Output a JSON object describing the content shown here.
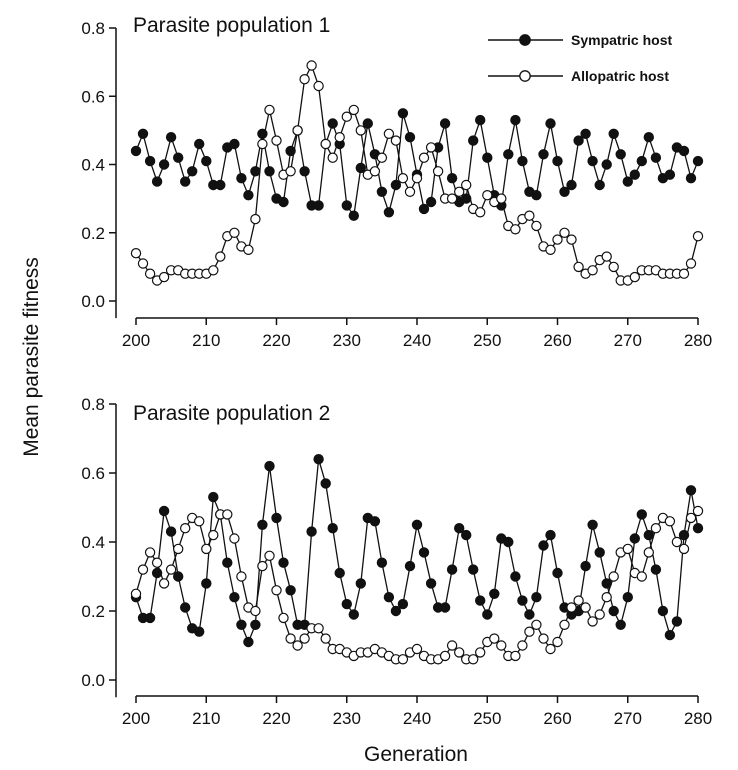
{
  "chart_data": {
    "type": "line",
    "ylabel": "Mean parasite fitness",
    "xlabel": "Generation",
    "legend": {
      "placement": "top-right of first panel",
      "entries": [
        {
          "label": "Sympatric host",
          "marker": "filled-circle",
          "color": "#111111"
        },
        {
          "label": "Allopatric host",
          "marker": "open-circle",
          "color": "#111111"
        }
      ]
    },
    "grid": false,
    "panels": [
      {
        "title": "Parasite population 1",
        "xlim": [
          200,
          280
        ],
        "ylim": [
          -0.05,
          0.8
        ],
        "x_ticks": [
          "200",
          "210",
          "220",
          "230",
          "240",
          "250",
          "260",
          "270",
          "280"
        ],
        "y_ticks": [
          "0.0",
          "0.2",
          "0.4",
          "0.6",
          "0.8"
        ],
        "x_start": 200,
        "series": [
          {
            "name": "Sympatric host",
            "marker": "filled",
            "values": [
              0.44,
              0.49,
              0.41,
              0.35,
              0.4,
              0.48,
              0.42,
              0.35,
              0.38,
              0.46,
              0.41,
              0.34,
              0.34,
              0.45,
              0.46,
              0.36,
              0.31,
              0.38,
              0.49,
              0.38,
              0.3,
              0.29,
              0.44,
              0.5,
              0.38,
              0.28,
              0.28,
              0.46,
              0.52,
              0.46,
              0.28,
              0.25,
              0.39,
              0.52,
              0.43,
              0.32,
              0.26,
              0.34,
              0.55,
              0.48,
              0.37,
              0.27,
              0.29,
              0.45,
              0.52,
              0.36,
              0.29,
              0.3,
              0.47,
              0.53,
              0.42,
              0.31,
              0.28,
              0.43,
              0.53,
              0.41,
              0.32,
              0.31,
              0.43,
              0.52,
              0.41,
              0.32,
              0.34,
              0.47,
              0.49,
              0.41,
              0.34,
              0.4,
              0.49,
              0.43,
              0.35,
              0.37,
              0.41,
              0.48,
              0.42,
              0.36,
              0.37,
              0.45,
              0.44,
              0.36,
              0.41
            ]
          },
          {
            "name": "Allopatric host",
            "marker": "open",
            "values": [
              0.14,
              0.11,
              0.08,
              0.06,
              0.07,
              0.09,
              0.09,
              0.08,
              0.08,
              0.08,
              0.08,
              0.09,
              0.13,
              0.19,
              0.2,
              0.16,
              0.15,
              0.24,
              0.46,
              0.56,
              0.47,
              0.37,
              0.38,
              0.5,
              0.65,
              0.69,
              0.63,
              0.46,
              0.42,
              0.48,
              0.54,
              0.56,
              0.5,
              0.37,
              0.38,
              0.42,
              0.49,
              0.47,
              0.36,
              0.32,
              0.36,
              0.42,
              0.45,
              0.38,
              0.3,
              0.3,
              0.32,
              0.34,
              0.27,
              0.26,
              0.31,
              0.29,
              0.3,
              0.22,
              0.21,
              0.24,
              0.25,
              0.22,
              0.16,
              0.15,
              0.18,
              0.2,
              0.18,
              0.1,
              0.08,
              0.09,
              0.12,
              0.13,
              0.1,
              0.06,
              0.06,
              0.07,
              0.09,
              0.09,
              0.09,
              0.08,
              0.08,
              0.08,
              0.08,
              0.11,
              0.19
            ]
          }
        ]
      },
      {
        "title": "Parasite population 2",
        "xlim": [
          200,
          280
        ],
        "ylim": [
          -0.05,
          0.8
        ],
        "x_ticks": [
          "200",
          "210",
          "220",
          "230",
          "240",
          "250",
          "260",
          "270",
          "280"
        ],
        "y_ticks": [
          "0.0",
          "0.2",
          "0.4",
          "0.6",
          "0.8"
        ],
        "x_start": 200,
        "series": [
          {
            "name": "Sympatric host",
            "marker": "filled",
            "values": [
              0.24,
              0.18,
              0.18,
              0.31,
              0.49,
              0.43,
              0.3,
              0.21,
              0.15,
              0.14,
              0.28,
              0.53,
              0.48,
              0.34,
              0.24,
              0.16,
              0.11,
              0.16,
              0.45,
              0.62,
              0.47,
              0.34,
              0.26,
              0.16,
              0.16,
              0.43,
              0.64,
              0.57,
              0.44,
              0.31,
              0.22,
              0.19,
              0.28,
              0.47,
              0.46,
              0.34,
              0.24,
              0.2,
              0.22,
              0.33,
              0.45,
              0.37,
              0.28,
              0.21,
              0.21,
              0.32,
              0.44,
              0.42,
              0.32,
              0.23,
              0.19,
              0.25,
              0.41,
              0.4,
              0.3,
              0.23,
              0.19,
              0.24,
              0.39,
              0.42,
              0.31,
              0.21,
              0.19,
              0.2,
              0.33,
              0.45,
              0.37,
              0.28,
              0.2,
              0.16,
              0.24,
              0.41,
              0.48,
              0.42,
              0.32,
              0.2,
              0.13,
              0.17,
              0.42,
              0.55,
              0.44
            ]
          },
          {
            "name": "Allopatric host",
            "marker": "open",
            "values": [
              0.25,
              0.32,
              0.37,
              0.34,
              0.28,
              0.32,
              0.38,
              0.44,
              0.47,
              0.46,
              0.38,
              0.42,
              0.48,
              0.48,
              0.41,
              0.3,
              0.21,
              0.2,
              0.33,
              0.36,
              0.26,
              0.18,
              0.12,
              0.1,
              0.12,
              0.15,
              0.15,
              0.12,
              0.09,
              0.09,
              0.08,
              0.07,
              0.08,
              0.08,
              0.09,
              0.08,
              0.07,
              0.06,
              0.06,
              0.08,
              0.09,
              0.07,
              0.06,
              0.06,
              0.07,
              0.1,
              0.08,
              0.06,
              0.06,
              0.08,
              0.11,
              0.12,
              0.1,
              0.07,
              0.07,
              0.1,
              0.14,
              0.16,
              0.12,
              0.09,
              0.11,
              0.16,
              0.21,
              0.23,
              0.21,
              0.17,
              0.19,
              0.24,
              0.3,
              0.37,
              0.38,
              0.31,
              0.3,
              0.37,
              0.44,
              0.47,
              0.46,
              0.4,
              0.38,
              0.47,
              0.49
            ]
          }
        ]
      }
    ]
  }
}
